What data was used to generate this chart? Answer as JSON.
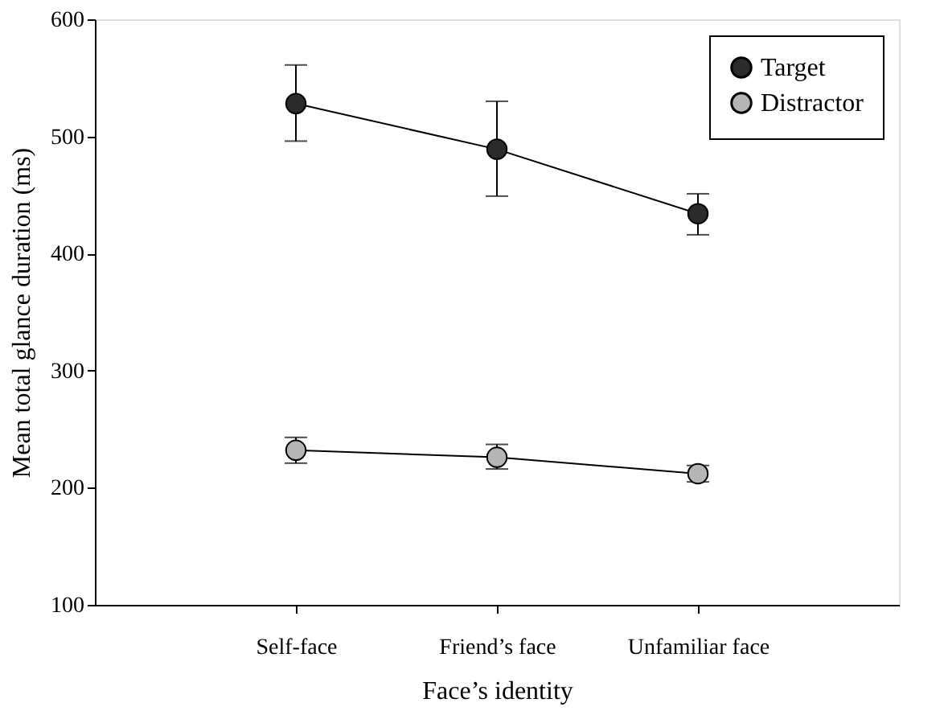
{
  "chart_data": {
    "type": "line",
    "xlabel": "Face’s identity",
    "ylabel": "Mean total glance duration (ms)",
    "categories": [
      "Self-face",
      "Friend’s face",
      "Unfamiliar face"
    ],
    "series": [
      {
        "name": "Target",
        "color": "#2b2b2b",
        "values": [
          528,
          489,
          434
        ],
        "errors": [
          [
            496,
            561
          ],
          [
            449,
            530
          ],
          [
            416,
            451
          ]
        ]
      },
      {
        "name": "Distractor",
        "color": "#b5b5b5",
        "values": [
          232,
          226,
          212
        ],
        "errors": [
          [
            221,
            243
          ],
          [
            216,
            237
          ],
          [
            205,
            219
          ]
        ]
      }
    ],
    "ylim": [
      100,
      600
    ],
    "yticks": [
      100,
      200,
      300,
      400,
      500,
      600
    ],
    "grid": false,
    "legend": "top right",
    "marker": "circle",
    "line_style": "solid"
  }
}
